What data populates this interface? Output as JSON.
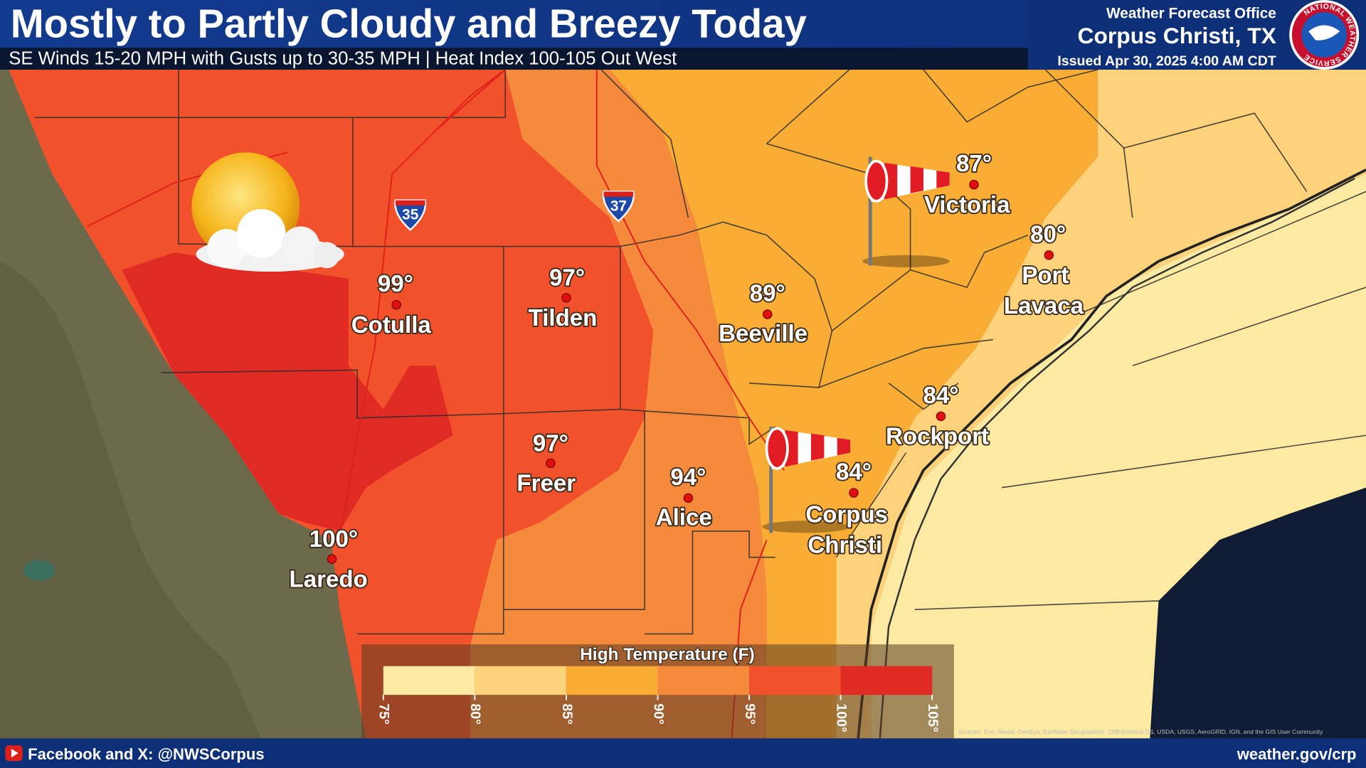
{
  "header": {
    "title": "Mostly to Partly Cloudy and Breezy Today",
    "subtitle": "SE Winds 15-20 MPH with Gusts up to 30-35 MPH | Heat Index 100-105 Out West",
    "office": "Weather Forecast Office",
    "location": "Corpus Christi, TX",
    "issued": "Issued Apr 30, 2025 4:00 AM CDT",
    "logo_text": "NATIONAL WEATHER SERVICE"
  },
  "map": {
    "highways": [
      "35",
      "37"
    ],
    "cities": [
      {
        "temp": "99°",
        "name": [
          "Cotulla"
        ]
      },
      {
        "temp": "97°",
        "name": [
          "Tilden"
        ]
      },
      {
        "temp": "97°",
        "name": [
          "Freer"
        ]
      },
      {
        "temp": "100°",
        "name": [
          "Laredo"
        ]
      },
      {
        "temp": "94°",
        "name": [
          "Alice"
        ]
      },
      {
        "temp": "89°",
        "name": [
          "Beeville"
        ]
      },
      {
        "temp": "87°",
        "name": [
          "Victoria"
        ]
      },
      {
        "temp": "80°",
        "name": [
          "Port",
          "Lavaca"
        ]
      },
      {
        "temp": "84°",
        "name": [
          "Rockport"
        ]
      },
      {
        "temp": "84°",
        "name": [
          "Corpus",
          "Christi"
        ]
      }
    ],
    "attribution": "Sources: Esri, Maxar, GeoEye, Earthstar Geographics, CNES/Airbus DS, USDA, USGS, AeroGRID, IGN, and the GIS User Community"
  },
  "legend": {
    "title": "High Temperature (F)",
    "colors": [
      "#fdeaa2",
      "#fdd27a",
      "#f9ad35",
      "#f58a3c",
      "#f2522b",
      "#e02a24"
    ],
    "ticks": [
      "75°",
      "80°",
      "85°",
      "90°",
      "95°",
      "100°",
      "105°"
    ]
  },
  "footer": {
    "social": "Facebook and X: @NWSCorpus",
    "website": "weather.gov/crp"
  }
}
